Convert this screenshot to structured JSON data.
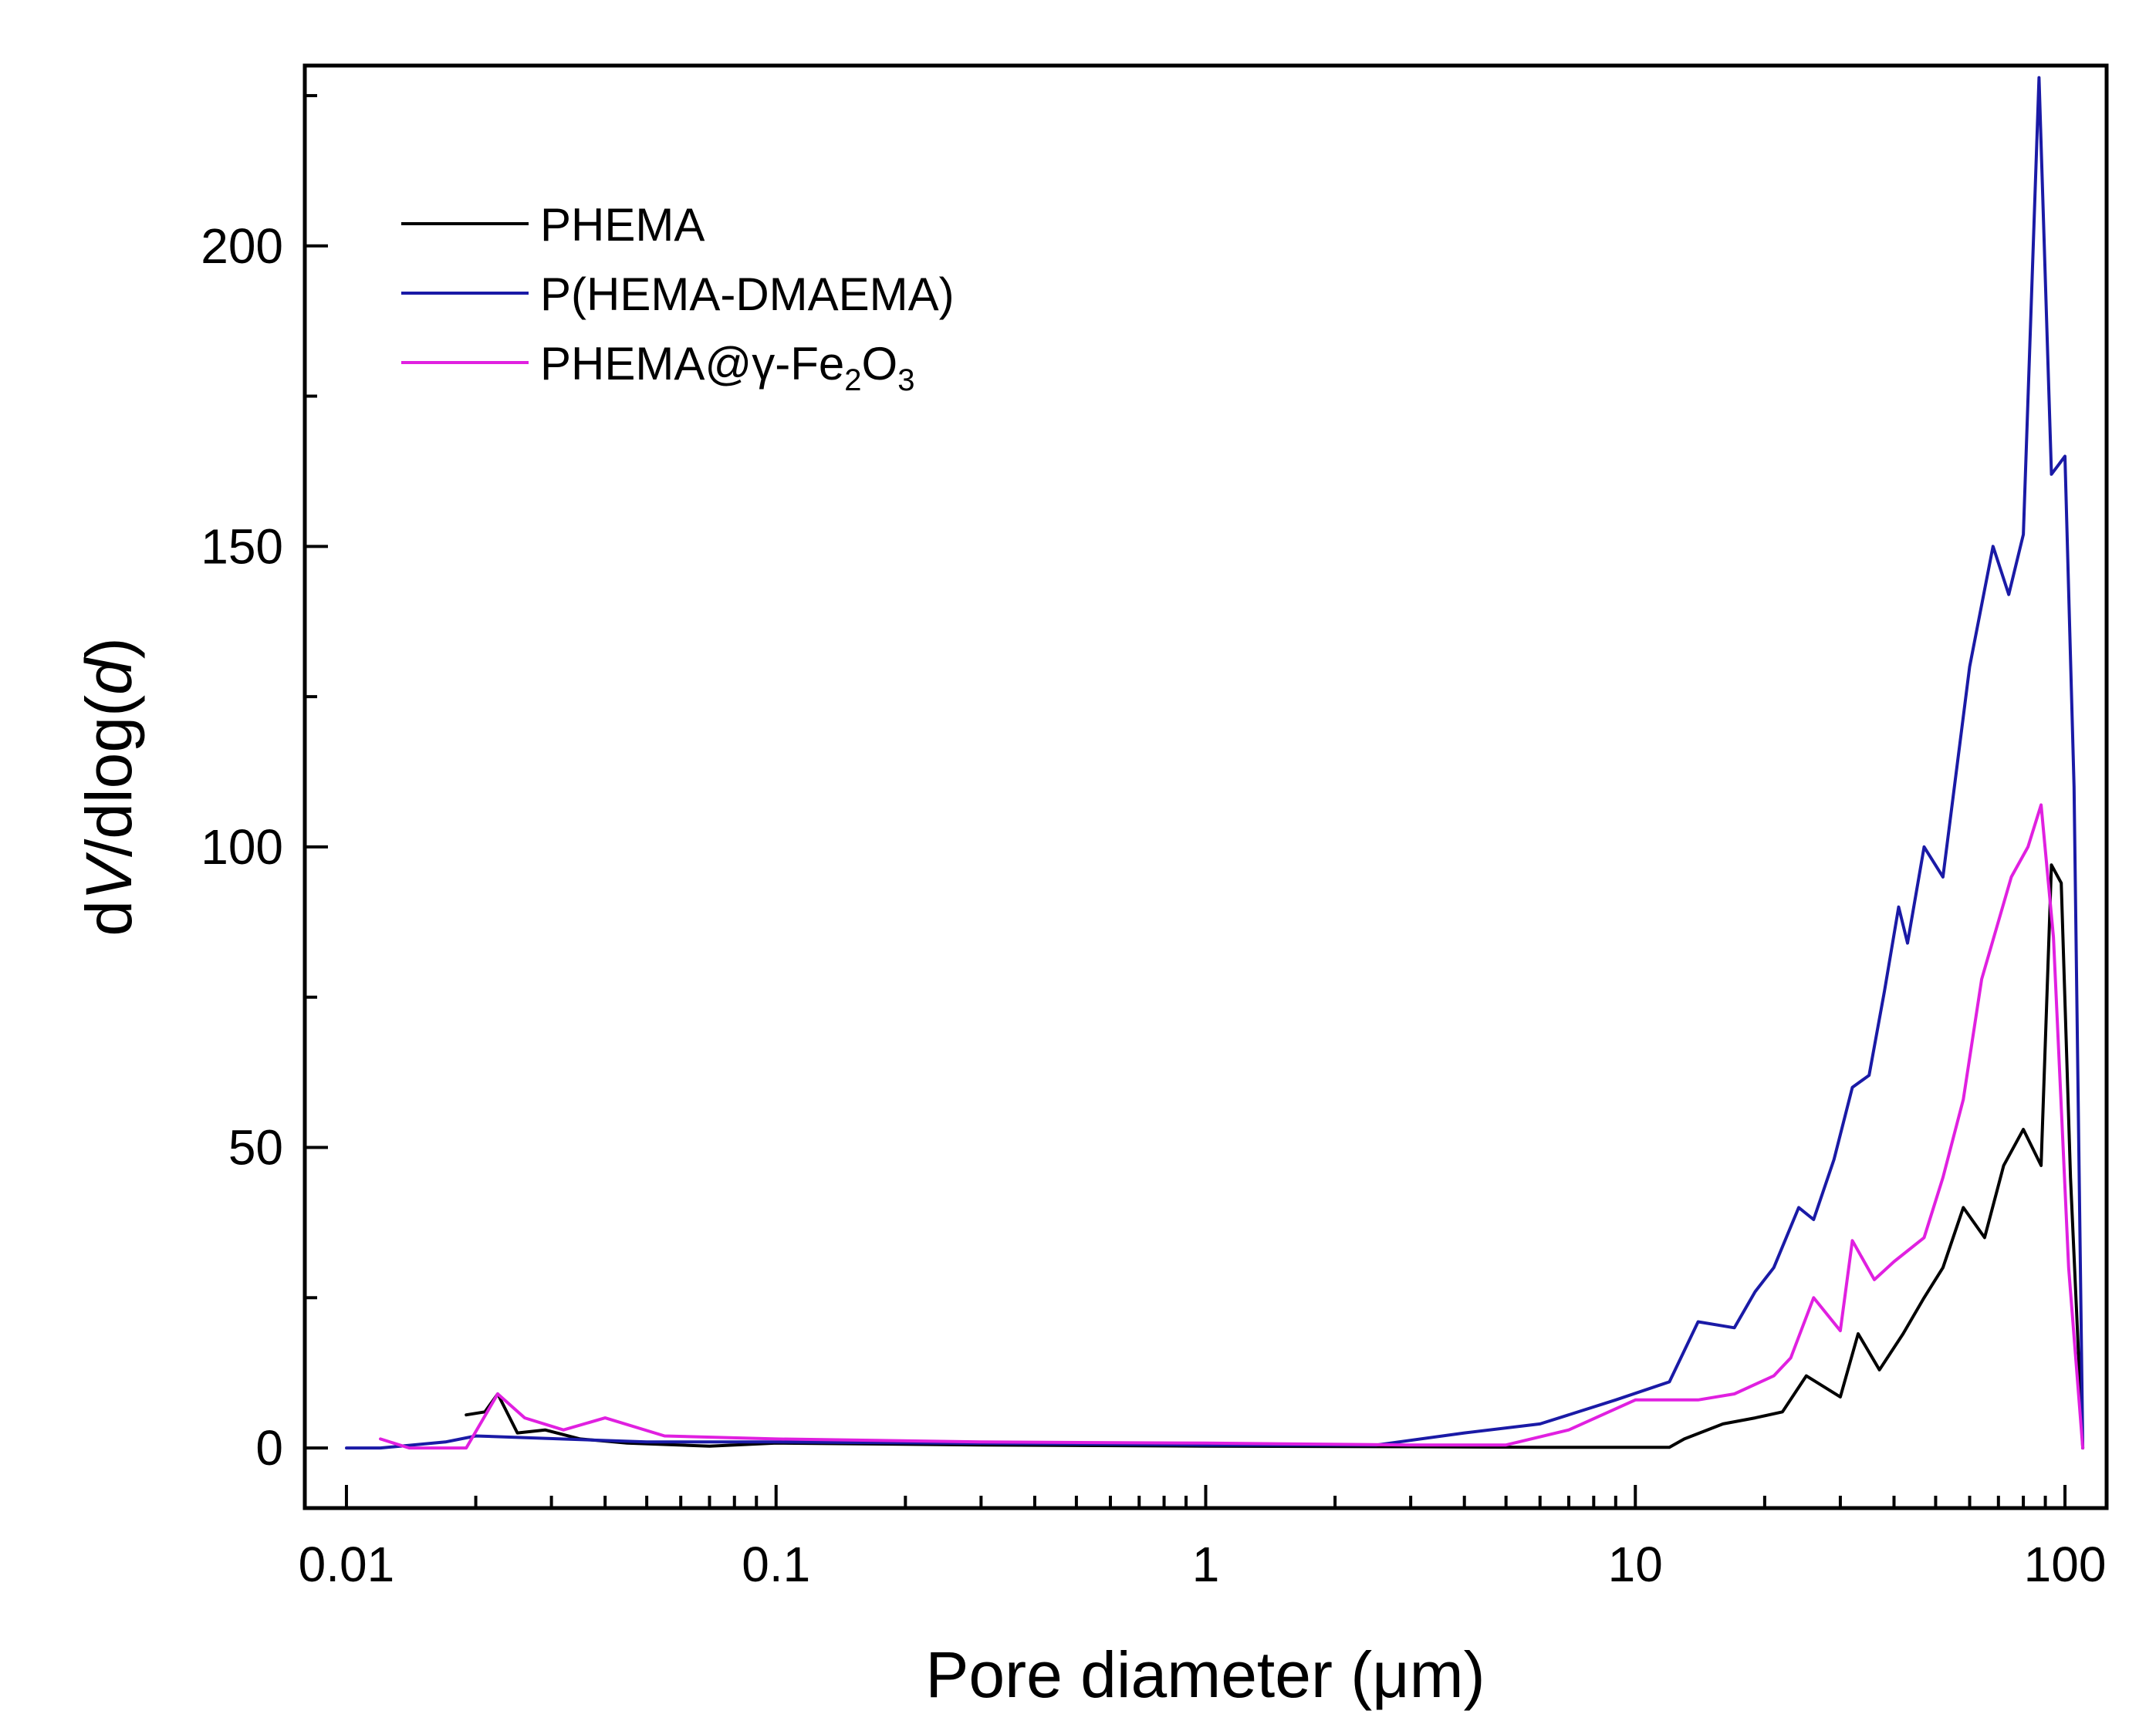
{
  "chart_data": {
    "type": "line",
    "title": "",
    "xlabel": "Pore diameter (μm)",
    "ylabel": {
      "prefix": "d",
      "italic_v": "V",
      "middle": "/dlog(",
      "italic_d": "d",
      "suffix": ")"
    },
    "xscale": "log",
    "xlim": [
      0.008,
      125
    ],
    "ylim": [
      -10,
      230
    ],
    "x_tick_labels": [
      "0.01",
      "0.1",
      "1",
      "10",
      "100"
    ],
    "x_ticks": [
      0.01,
      0.1,
      1,
      10,
      100
    ],
    "y_tick_labels": [
      "0",
      "50",
      "100",
      "150",
      "200"
    ],
    "y_ticks": [
      0,
      50,
      100,
      150,
      200
    ],
    "grid": false,
    "legend_position": "top-left",
    "series": [
      {
        "name": "PHEMA",
        "legend": {
          "text": "PHEMA"
        },
        "color": "#000000",
        "points": [
          [
            0.019,
            5.5
          ],
          [
            0.021,
            6
          ],
          [
            0.0225,
            9
          ],
          [
            0.025,
            2.5
          ],
          [
            0.029,
            3
          ],
          [
            0.035,
            1.5
          ],
          [
            0.045,
            0.8
          ],
          [
            0.07,
            0.3
          ],
          [
            0.1,
            0.8
          ],
          [
            0.3,
            0.5
          ],
          [
            1,
            0.3
          ],
          [
            3,
            0.2
          ],
          [
            6,
            0.1
          ],
          [
            9,
            0.1
          ],
          [
            12,
            0.1
          ],
          [
            13,
            1.5
          ],
          [
            16,
            4
          ],
          [
            19,
            5
          ],
          [
            22,
            6
          ],
          [
            25,
            12
          ],
          [
            30,
            8.5
          ],
          [
            33,
            19
          ],
          [
            37,
            13
          ],
          [
            42,
            19
          ],
          [
            47,
            25
          ],
          [
            52,
            30
          ],
          [
            58,
            40
          ],
          [
            65,
            35
          ],
          [
            72,
            47
          ],
          [
            80,
            53
          ],
          [
            88,
            47
          ],
          [
            93,
            97
          ],
          [
            98,
            94
          ],
          [
            103,
            45
          ],
          [
            110,
            0
          ]
        ]
      },
      {
        "name": "P(HEMA-DMAEMA)",
        "legend": {
          "text": "P(HEMA-DMAEMA)"
        },
        "color": "#1a1aa6",
        "points": [
          [
            0.01,
            0
          ],
          [
            0.012,
            0
          ],
          [
            0.017,
            1
          ],
          [
            0.02,
            2
          ],
          [
            0.05,
            1
          ],
          [
            0.1,
            1
          ],
          [
            1,
            0.5
          ],
          [
            2.5,
            0.5
          ],
          [
            4,
            2.5
          ],
          [
            6,
            4
          ],
          [
            9,
            8
          ],
          [
            12,
            11
          ],
          [
            14,
            21
          ],
          [
            17,
            20
          ],
          [
            19,
            26
          ],
          [
            21,
            30
          ],
          [
            24,
            40
          ],
          [
            26,
            38
          ],
          [
            29,
            48
          ],
          [
            32,
            60
          ],
          [
            35,
            62
          ],
          [
            38,
            76
          ],
          [
            41,
            90
          ],
          [
            43,
            84
          ],
          [
            47,
            100
          ],
          [
            52,
            95
          ],
          [
            60,
            130
          ],
          [
            68,
            150
          ],
          [
            74,
            142
          ],
          [
            80,
            152
          ],
          [
            87,
            228
          ],
          [
            93,
            162
          ],
          [
            100,
            165
          ],
          [
            105,
            110
          ],
          [
            110,
            0
          ]
        ]
      },
      {
        "name": "PHEMA@γ-Fe2O3",
        "legend": {
          "base": "PHEMA@γ-Fe",
          "sub1": "2",
          "mid": "O",
          "sub2": "3"
        },
        "color": "#e020e0",
        "points": [
          [
            0.012,
            1.5
          ],
          [
            0.014,
            0
          ],
          [
            0.017,
            0
          ],
          [
            0.019,
            0
          ],
          [
            0.0225,
            9
          ],
          [
            0.026,
            5
          ],
          [
            0.032,
            3
          ],
          [
            0.04,
            5
          ],
          [
            0.055,
            2
          ],
          [
            0.1,
            1.5
          ],
          [
            0.3,
            1
          ],
          [
            1,
            0.8
          ],
          [
            3,
            0.5
          ],
          [
            5,
            0.5
          ],
          [
            7,
            3
          ],
          [
            10,
            8
          ],
          [
            14,
            8
          ],
          [
            17,
            9
          ],
          [
            21,
            12
          ],
          [
            23,
            15
          ],
          [
            26,
            25
          ],
          [
            30,
            19.5
          ],
          [
            32,
            34.5
          ],
          [
            36,
            28
          ],
          [
            40,
            31
          ],
          [
            47,
            35
          ],
          [
            52,
            45
          ],
          [
            58,
            58
          ],
          [
            64,
            78
          ],
          [
            75,
            95
          ],
          [
            82,
            100
          ],
          [
            88,
            107
          ],
          [
            94,
            85
          ],
          [
            102,
            30
          ],
          [
            110,
            0
          ]
        ]
      }
    ]
  }
}
